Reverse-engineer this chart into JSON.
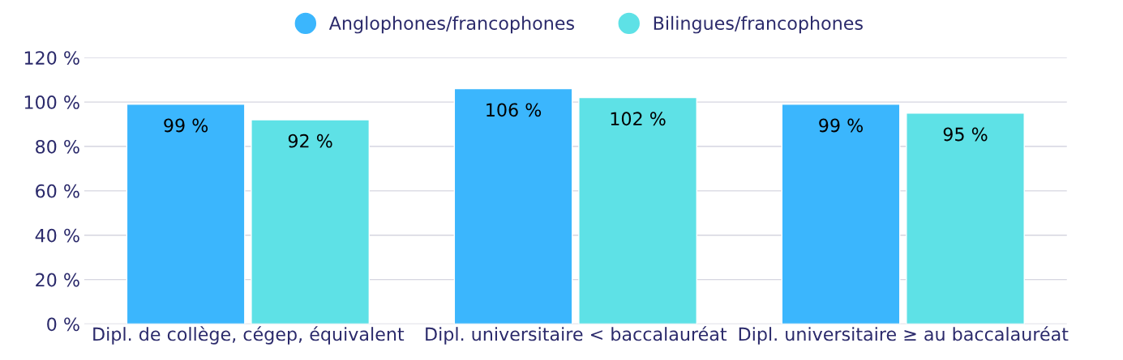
{
  "chart_data": {
    "type": "bar",
    "categories": [
      "Dipl. de collège, cégep, équivalent",
      "Dipl. universitaire < baccalauréat",
      "Dipl. universitaire ≥ au baccalauréat"
    ],
    "series": [
      {
        "name": "Anglophones/francophones",
        "color": "#3bb6fd",
        "values": [
          99,
          106,
          99
        ],
        "value_labels": [
          "99 %",
          "106 %",
          "99 %"
        ]
      },
      {
        "name": "Bilingues/francophones",
        "color": "#5ee1e6",
        "values": [
          92,
          102,
          95
        ],
        "value_labels": [
          "92 %",
          "102 %",
          "95 %"
        ]
      }
    ],
    "ylim": [
      0,
      120
    ],
    "yticks": [
      {
        "value": 0,
        "label": "0 %"
      },
      {
        "value": 20,
        "label": "20 %"
      },
      {
        "value": 40,
        "label": "40 %"
      },
      {
        "value": 60,
        "label": "60 %"
      },
      {
        "value": 80,
        "label": "80 %"
      },
      {
        "value": 100,
        "label": "100 %"
      },
      {
        "value": 120,
        "label": "120 %"
      }
    ],
    "grid": "y",
    "legend": "top"
  }
}
